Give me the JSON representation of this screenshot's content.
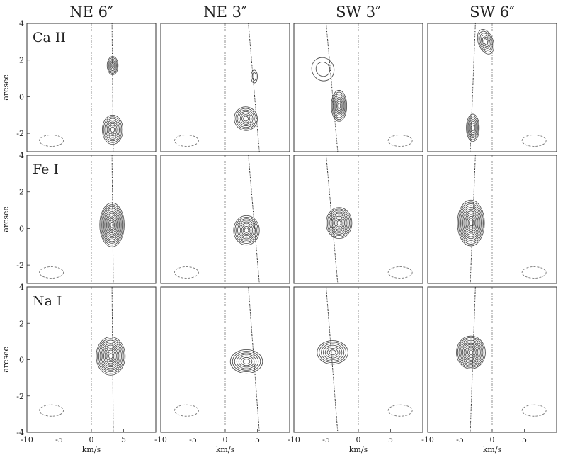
{
  "chart_data": {
    "type": "contour",
    "column_titles": [
      "NE 6″",
      "NE 3″",
      "SW 3″",
      "SW 6″"
    ],
    "row_labels": [
      "Ca II",
      "Fe I",
      "Na I"
    ],
    "xlabel": "km/s",
    "ylabel": "arcsec",
    "xlim": [
      -10,
      10
    ],
    "ylim_rows": [
      [
        -3,
        4
      ],
      [
        -3,
        4
      ],
      [
        -4,
        4
      ]
    ],
    "x_ticks": [
      -10,
      -5,
      0,
      5
    ],
    "y_ticks_rows": [
      [
        -2,
        0,
        2,
        4
      ],
      [
        -2,
        0,
        2,
        4
      ],
      [
        -4,
        -2,
        0,
        2,
        4
      ]
    ],
    "reference_lines": {
      "systemic_velocity_kms": [
        0,
        0,
        0,
        0
      ]
    },
    "curves": {
      "NE 6″": {
        "x_bottom": 3.4,
        "x_top": 3.2
      },
      "NE 3″": {
        "x_bottom": 5.3,
        "x_top": 3.6
      },
      "SW 3″": {
        "x_bottom": -3.2,
        "x_top": -5.0
      },
      "SW 6″": {
        "x_bottom": -3.4,
        "x_top": -2.6
      }
    },
    "panels": [
      {
        "column": "NE 6″",
        "species": "Ca II",
        "components": [
          {
            "vx": 3.3,
            "y": 1.7,
            "sx": 1.7,
            "sy": 1.0,
            "rot": 0,
            "levels": 6
          },
          {
            "vx": 3.3,
            "y": -1.8,
            "sx": 3.2,
            "sy": 1.6,
            "rot": 0,
            "levels": 8
          }
        ]
      },
      {
        "column": "NE 3″",
        "species": "Ca II",
        "components": [
          {
            "vx": 3.2,
            "y": -1.2,
            "sx": 3.6,
            "sy": 1.3,
            "rot": 25,
            "levels": 7
          },
          {
            "vx": 4.5,
            "y": 1.1,
            "sx": 1.0,
            "sy": 0.7,
            "rot": 0,
            "levels": 2
          }
        ]
      },
      {
        "column": "SW 3″",
        "species": "Ca II",
        "components": [
          {
            "vx": -3.0,
            "y": -0.5,
            "sx": 2.4,
            "sy": 1.7,
            "rot": 0,
            "levels": 8
          },
          {
            "vx": -5.5,
            "y": 1.5,
            "sx": 3.4,
            "sy": 1.3,
            "rot": 30,
            "levels": 2
          }
        ]
      },
      {
        "column": "SW 6″",
        "species": "Ca II",
        "components": [
          {
            "vx": -3.0,
            "y": -1.7,
            "sx": 2.0,
            "sy": 1.5,
            "rot": 0,
            "levels": 7
          },
          {
            "vx": -1.0,
            "y": 3.0,
            "sx": 2.3,
            "sy": 1.4,
            "rot": 20,
            "levels": 6
          }
        ]
      },
      {
        "column": "NE 6″",
        "species": "Fe I",
        "components": [
          {
            "vx": 3.2,
            "y": 0.2,
            "sx": 3.8,
            "sy": 2.4,
            "rot": 0,
            "levels": 12
          }
        ]
      },
      {
        "column": "NE 3″",
        "species": "Fe I",
        "components": [
          {
            "vx": 3.3,
            "y": -0.1,
            "sx": 4.0,
            "sy": 1.6,
            "rot": 0,
            "levels": 9
          }
        ]
      },
      {
        "column": "SW 3″",
        "species": "Fe I",
        "components": [
          {
            "vx": -3.0,
            "y": 0.3,
            "sx": 4.0,
            "sy": 1.7,
            "rot": 0,
            "levels": 10
          }
        ]
      },
      {
        "column": "SW 6″",
        "species": "Fe I",
        "components": [
          {
            "vx": -3.3,
            "y": 0.3,
            "sx": 4.2,
            "sy": 2.5,
            "rot": 0,
            "levels": 12
          }
        ]
      },
      {
        "column": "NE 6″",
        "species": "Na I",
        "components": [
          {
            "vx": 3.0,
            "y": 0.2,
            "sx": 4.5,
            "sy": 2.1,
            "rot": 0,
            "levels": 11
          }
        ]
      },
      {
        "column": "NE 3″",
        "species": "Na I",
        "components": [
          {
            "vx": 3.3,
            "y": -0.1,
            "sx": 5.0,
            "sy": 1.3,
            "rot": 0,
            "levels": 7
          }
        ]
      },
      {
        "column": "SW 3″",
        "species": "Na I",
        "components": [
          {
            "vx": -4.0,
            "y": 0.4,
            "sx": 4.8,
            "sy": 1.3,
            "rot": 0,
            "levels": 7
          }
        ]
      },
      {
        "column": "SW 6″",
        "species": "Na I",
        "components": [
          {
            "vx": -3.3,
            "y": 0.4,
            "sx": 4.5,
            "sy": 1.8,
            "rot": 0,
            "levels": 11
          }
        ]
      }
    ],
    "beam_ellipses": [
      {
        "column": "NE 6″",
        "species": "Ca II",
        "vx": -6.2,
        "y": -2.4
      },
      {
        "column": "NE 3″",
        "species": "Ca II",
        "vx": -6.0,
        "y": -2.4
      },
      {
        "column": "SW 3″",
        "species": "Ca II",
        "vx": 6.5,
        "y": -2.4
      },
      {
        "column": "SW 6″",
        "species": "Ca II",
        "vx": 6.5,
        "y": -2.4
      },
      {
        "column": "NE 6″",
        "species": "Fe I",
        "vx": -6.2,
        "y": -2.4
      },
      {
        "column": "NE 3″",
        "species": "Fe I",
        "vx": -6.0,
        "y": -2.4
      },
      {
        "column": "SW 3″",
        "species": "Fe I",
        "vx": 6.5,
        "y": -2.4
      },
      {
        "column": "SW 6″",
        "species": "Fe I",
        "vx": 6.5,
        "y": -2.4
      },
      {
        "column": "NE 6″",
        "species": "Na I",
        "vx": -6.2,
        "y": -2.8
      },
      {
        "column": "NE 3″",
        "species": "Na I",
        "vx": -6.0,
        "y": -2.8
      },
      {
        "column": "SW 3″",
        "species": "Na I",
        "vx": 6.5,
        "y": -2.8
      },
      {
        "column": "SW 6″",
        "species": "Na I",
        "vx": 6.5,
        "y": -2.8
      }
    ],
    "colors": {
      "contour": "#555555",
      "frame": "#333333",
      "reference": "#777777",
      "beam": "#777777"
    }
  }
}
